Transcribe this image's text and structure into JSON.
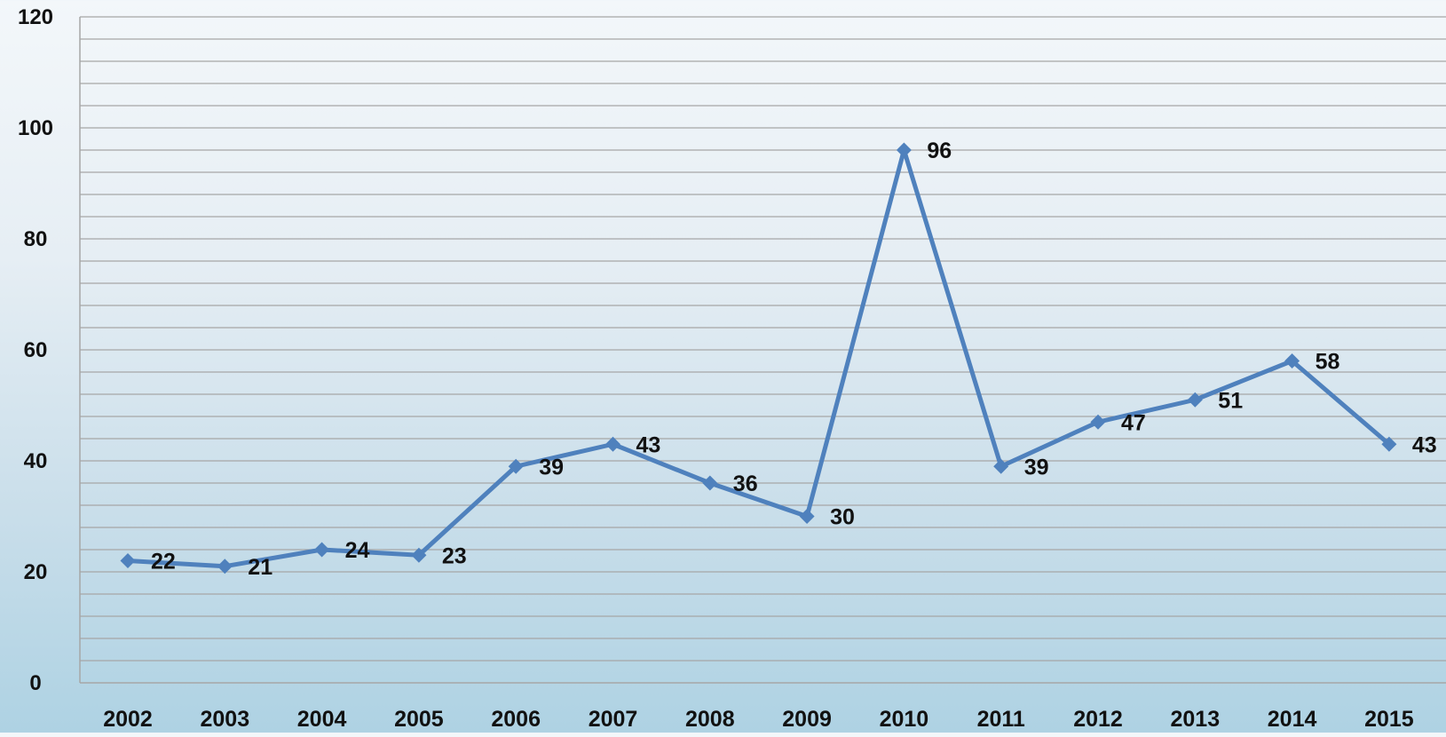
{
  "chart_data": {
    "type": "line",
    "title": "",
    "xlabel": "",
    "ylabel": "",
    "categories": [
      "2002",
      "2003",
      "2004",
      "2005",
      "2006",
      "2007",
      "2008",
      "2009",
      "2010",
      "2011",
      "2012",
      "2013",
      "2014",
      "2015"
    ],
    "series": [
      {
        "values": [
          22,
          21,
          24,
          23,
          39,
          43,
          36,
          30,
          96,
          39,
          47,
          51,
          58,
          43
        ],
        "marker": "diamond",
        "data_labels": true
      }
    ],
    "ylim": [
      0,
      120
    ],
    "y_ticks": [
      0,
      20,
      40,
      60,
      80,
      100,
      120
    ],
    "grid": "horizontal, every 4 units",
    "legend": "none",
    "colors": {
      "line": "#4f81bd",
      "grid": "#a6a6a6",
      "axis": "#a6a6a6",
      "text": "#111111"
    }
  }
}
